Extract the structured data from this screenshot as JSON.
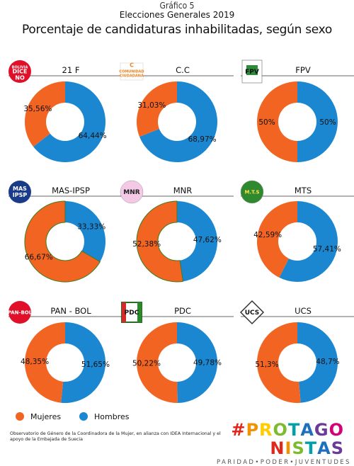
{
  "header": {
    "figure_label": "Gráfico 5",
    "subtitle": "Elecciones Generales 2019",
    "title": "Porcentaje de candidaturas inhabilitadas, según sexo"
  },
  "colors": {
    "mujeres": "#f26422",
    "hombres": "#1b87d1",
    "header_line": "#333333",
    "highlight_outline": "#3a7d1e"
  },
  "chart_data": [
    {
      "type": "pie",
      "title": "21 F",
      "series": [
        {
          "name": "Mujeres",
          "value": 35.56,
          "label": "35,56%"
        },
        {
          "name": "Hombres",
          "value": 64.44,
          "label": "64,44%"
        }
      ]
    },
    {
      "type": "pie",
      "title": "C.C",
      "series": [
        {
          "name": "Mujeres",
          "value": 31.03,
          "label": "31,03%"
        },
        {
          "name": "Hombres",
          "value": 68.97,
          "label": "68,97%"
        }
      ]
    },
    {
      "type": "pie",
      "title": "FPV",
      "series": [
        {
          "name": "Mujeres",
          "value": 50,
          "label": "50%"
        },
        {
          "name": "Hombres",
          "value": 50,
          "label": "50%"
        }
      ]
    },
    {
      "type": "pie",
      "title": "MAS-IPSP",
      "series": [
        {
          "name": "Mujeres",
          "value": 66.67,
          "label": "66,67%"
        },
        {
          "name": "Hombres",
          "value": 33.33,
          "label": "33,33%"
        }
      ],
      "highlight": "Mujeres"
    },
    {
      "type": "pie",
      "title": "MNR",
      "series": [
        {
          "name": "Mujeres",
          "value": 52.38,
          "label": "52,38%"
        },
        {
          "name": "Hombres",
          "value": 47.62,
          "label": "47,62%"
        }
      ],
      "highlight": "Mujeres"
    },
    {
      "type": "pie",
      "title": "MTS",
      "series": [
        {
          "name": "Mujeres",
          "value": 42.59,
          "label": "42,59%"
        },
        {
          "name": "Hombres",
          "value": 57.41,
          "label": "57,41%"
        }
      ]
    },
    {
      "type": "pie",
      "title": "PAN - BOL",
      "series": [
        {
          "name": "Mujeres",
          "value": 48.35,
          "label": "48,35%"
        },
        {
          "name": "Hombres",
          "value": 51.65,
          "label": "51,65%"
        }
      ]
    },
    {
      "type": "pie",
      "title": "PDC",
      "series": [
        {
          "name": "Mujeres",
          "value": 50.22,
          "label": "50,22%"
        },
        {
          "name": "Hombres",
          "value": 49.78,
          "label": "49,78%"
        }
      ]
    },
    {
      "type": "pie",
      "title": "UCS",
      "series": [
        {
          "name": "Mujeres",
          "value": 51.3,
          "label": "51,3%"
        },
        {
          "name": "Hombres",
          "value": 48.7,
          "label": "48,7%"
        }
      ]
    }
  ],
  "logos": [
    {
      "party": "21 F",
      "lines": [
        "BOLIVIA",
        "DICE",
        "NO"
      ],
      "bg": "#e0102b",
      "fg": "#ffffff"
    },
    {
      "party": "C.C",
      "lines": [
        "C",
        "COMUNIDAD",
        "CIUDADANA"
      ],
      "bg": "#ffffff",
      "fg": "#e8821e"
    },
    {
      "party": "FPV",
      "lines": [
        "FPV"
      ],
      "bg": "#ffffff",
      "fg": "#2a6b2a"
    },
    {
      "party": "MAS-IPSP",
      "lines": [
        "MAS",
        "IPSP"
      ],
      "bg": "#1a3a8a",
      "fg": "#ffffff"
    },
    {
      "party": "MNR",
      "lines": [
        "MNR"
      ],
      "bg": "#f4c9e6",
      "fg": "#222222"
    },
    {
      "party": "MTS",
      "lines": [
        "M.T.S"
      ],
      "bg": "#2f8a2f",
      "fg": "#ffe24a"
    },
    {
      "party": "PAN - BOL",
      "lines": [
        "PAN-BOL"
      ],
      "bg": "#e0102b",
      "fg": "#ffffff"
    },
    {
      "party": "PDC",
      "lines": [
        "PDC"
      ],
      "bg": "#ffffff",
      "fg": "#111111"
    },
    {
      "party": "UCS",
      "lines": [
        "UCS"
      ],
      "bg": "#ffffff",
      "fg": "#111111"
    }
  ],
  "legend": {
    "mujeres": "Mujeres",
    "hombres": "Hombres"
  },
  "source": "Observatorio de Género de la Coordinadora de la Mujer, en alianza con IDEA Internacional y el apoyo de la Embajada de Suecia",
  "brand": {
    "hashtag": "#PROTAGONISTAS",
    "tagline": "PARIDAD•PODER•JUVENTUDES"
  }
}
